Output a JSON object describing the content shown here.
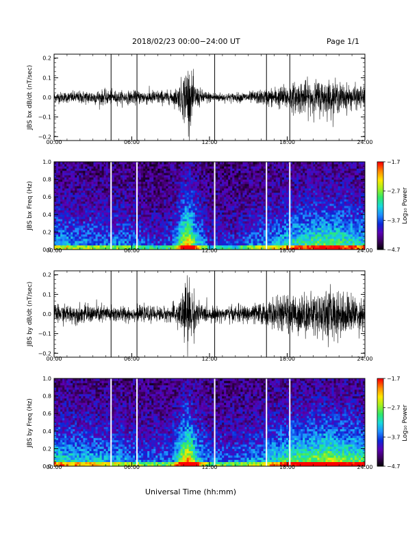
{
  "header": {
    "date_range": "2018/02/23  00:00−24:00 UT",
    "page": "Page 1/1"
  },
  "footer": {
    "xlabel": "Universal Time (hh:mm)"
  },
  "colorbar": {
    "ticks": [
      "−1.7",
      "−2.7",
      "−3.7",
      "−4.7"
    ],
    "label": "Log₁₀ Power",
    "range": [
      -4.7,
      -1.7
    ],
    "colors": [
      "#000000",
      "#3a005a",
      "#5a00b4",
      "#0a28d8",
      "#1e8cff",
      "#18d8dc",
      "#2ee86a",
      "#a0f020",
      "#ffe800",
      "#ff8a00",
      "#ff0000"
    ]
  },
  "chart_data": [
    {
      "type": "line",
      "name": "bx_waveform",
      "ylabel": "JBS bx dB/dt (nT/sec)",
      "xlim": [
        0,
        24
      ],
      "ylim": [
        -0.22,
        0.22
      ],
      "xticks": [
        "00:00",
        "06:00",
        "12:00",
        "18:00",
        "24:00"
      ],
      "yticks": [
        "0.2",
        "0.1",
        "0.0",
        "−0.1",
        "−0.2"
      ],
      "yticks_values": [
        0.2,
        0.1,
        0.0,
        -0.1,
        -0.2
      ],
      "data_gaps_hours": [
        4.4,
        6.4,
        12.4,
        16.4,
        18.2
      ],
      "amplitude_envelope": {
        "x": [
          0,
          1,
          2,
          3,
          4,
          5,
          6,
          7,
          8,
          9,
          9.6,
          10.0,
          10.3,
          10.6,
          11,
          11.5,
          12,
          13,
          14,
          15,
          16,
          17,
          18,
          19,
          20,
          21,
          22,
          23,
          24
        ],
        "y": [
          0.03,
          0.03,
          0.035,
          0.04,
          0.04,
          0.035,
          0.035,
          0.04,
          0.04,
          0.035,
          0.06,
          0.13,
          0.2,
          0.13,
          0.06,
          0.04,
          0.03,
          0.025,
          0.025,
          0.03,
          0.04,
          0.055,
          0.07,
          0.09,
          0.09,
          0.1,
          0.08,
          0.065,
          0.06
        ]
      }
    },
    {
      "type": "heatmap",
      "name": "bx_spectrogram",
      "ylabel": "JBS bx Freq (Hz)",
      "xlim": [
        0,
        24
      ],
      "ylim": [
        0.0,
        1.0
      ],
      "xticks": [
        "00:00",
        "06:00",
        "12:00",
        "18:00",
        "24:00"
      ],
      "yticks": [
        "1.0",
        "0.8",
        "0.6",
        "0.4",
        "0.2",
        "0.0"
      ],
      "yticks_values": [
        1.0,
        0.8,
        0.6,
        0.4,
        0.2,
        0.0
      ],
      "zlim": [
        -4.7,
        -1.7
      ],
      "data_gaps_hours": [
        4.4,
        6.4,
        12.4,
        16.4,
        18.2
      ],
      "activity_profile": {
        "x": [
          0,
          1,
          2,
          3,
          4,
          5,
          6,
          7,
          8,
          9,
          9.6,
          10.0,
          10.3,
          10.6,
          11,
          11.5,
          12,
          13,
          14,
          15,
          16,
          17,
          18,
          19,
          20,
          21,
          22,
          23,
          24
        ],
        "y": [
          0.4,
          0.4,
          0.35,
          0.35,
          0.3,
          0.35,
          0.3,
          0.25,
          0.2,
          0.25,
          0.5,
          0.8,
          0.95,
          0.8,
          0.5,
          0.35,
          0.2,
          0.2,
          0.2,
          0.3,
          0.35,
          0.4,
          0.5,
          0.55,
          0.6,
          0.65,
          0.6,
          0.55,
          0.5
        ]
      }
    },
    {
      "type": "line",
      "name": "by_waveform",
      "ylabel": "JBS by dB/dt (nT/sec)",
      "xlim": [
        0,
        24
      ],
      "ylim": [
        -0.22,
        0.22
      ],
      "xticks": [
        "00:00",
        "06:00",
        "12:00",
        "18:00",
        "24:00"
      ],
      "yticks": [
        "0.2",
        "0.1",
        "0.0",
        "−0.1",
        "−0.2"
      ],
      "yticks_values": [
        0.2,
        0.1,
        0.0,
        -0.1,
        -0.2
      ],
      "data_gaps_hours": [
        4.4,
        6.4,
        12.4,
        16.4,
        18.2
      ],
      "amplitude_envelope": {
        "x": [
          0,
          1,
          2,
          3,
          4,
          5,
          6,
          7,
          8,
          9,
          9.6,
          10.0,
          10.3,
          10.6,
          11,
          11.5,
          12,
          13,
          14,
          15,
          16,
          17,
          18,
          19,
          20,
          21,
          22,
          23,
          24
        ],
        "y": [
          0.05,
          0.05,
          0.05,
          0.05,
          0.05,
          0.045,
          0.04,
          0.04,
          0.04,
          0.04,
          0.08,
          0.15,
          0.21,
          0.15,
          0.08,
          0.05,
          0.04,
          0.04,
          0.045,
          0.05,
          0.06,
          0.08,
          0.1,
          0.11,
          0.11,
          0.14,
          0.13,
          0.1,
          0.09
        ]
      }
    },
    {
      "type": "heatmap",
      "name": "by_spectrogram",
      "ylabel": "JBS by Freq (Hz)",
      "xlim": [
        0,
        24
      ],
      "ylim": [
        0.0,
        1.0
      ],
      "xticks": [
        "00:00",
        "06:00",
        "12:00",
        "18:00",
        "24:00"
      ],
      "yticks": [
        "1.0",
        "0.8",
        "0.6",
        "0.4",
        "0.2",
        "0.0"
      ],
      "yticks_values": [
        1.0,
        0.8,
        0.6,
        0.4,
        0.2,
        0.0
      ],
      "zlim": [
        -4.7,
        -1.7
      ],
      "data_gaps_hours": [
        4.4,
        6.4,
        12.4,
        16.4,
        18.2
      ],
      "activity_profile": {
        "x": [
          0,
          1,
          2,
          3,
          4,
          5,
          6,
          7,
          8,
          9,
          9.6,
          10.0,
          10.3,
          10.6,
          11,
          11.5,
          12,
          13,
          14,
          15,
          16,
          17,
          18,
          19,
          20,
          21,
          22,
          23,
          24
        ],
        "y": [
          0.5,
          0.5,
          0.45,
          0.45,
          0.4,
          0.4,
          0.35,
          0.3,
          0.3,
          0.3,
          0.55,
          0.85,
          0.95,
          0.85,
          0.55,
          0.4,
          0.3,
          0.3,
          0.3,
          0.35,
          0.4,
          0.5,
          0.6,
          0.65,
          0.7,
          0.75,
          0.7,
          0.65,
          0.6
        ]
      }
    }
  ]
}
